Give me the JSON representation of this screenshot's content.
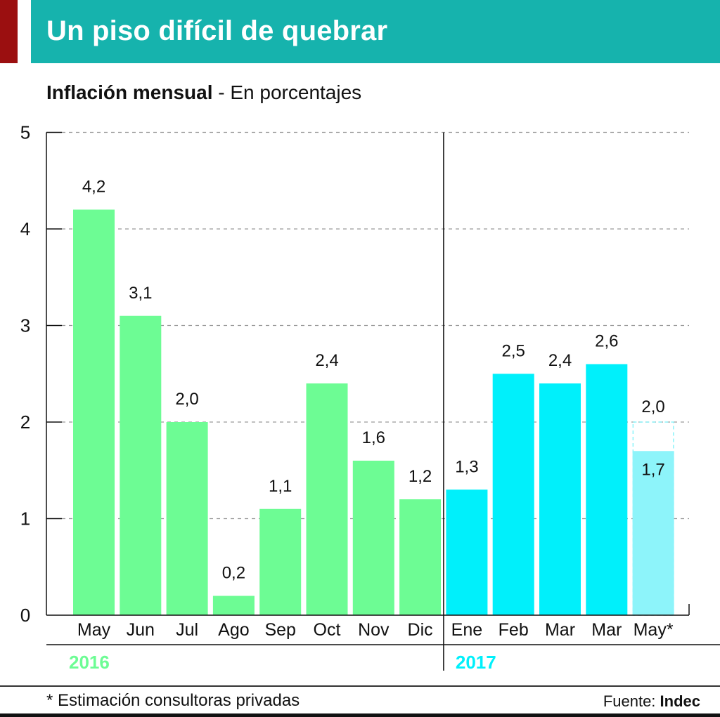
{
  "header": {
    "title": "Un piso difícil de quebrar",
    "accent_color": "#9b0f10",
    "band_color": "#16b3ad"
  },
  "subtitle": {
    "bold": "Inflación mensual",
    "rest": " - En porcentajes"
  },
  "chart_data": {
    "type": "bar",
    "title": "Inflación mensual",
    "ylabel": "En porcentajes",
    "ylim": [
      0,
      5
    ],
    "yticks": [
      "0",
      "1",
      "2",
      "3",
      "4",
      "5"
    ],
    "grid": true,
    "categories": [
      "May",
      "Jun",
      "Jul",
      "Ago",
      "Sep",
      "Oct",
      "Nov",
      "Dic",
      "Ene",
      "Feb",
      "Mar",
      "Mar",
      "May*"
    ],
    "values": [
      4.2,
      3.1,
      2.0,
      0.2,
      1.1,
      2.4,
      1.6,
      1.2,
      1.3,
      2.5,
      2.4,
      2.6,
      1.7
    ],
    "value_labels": [
      "4,2",
      "3,1",
      "2,0",
      "0,2",
      "1,1",
      "2,4",
      "1,6",
      "1,2",
      "1,3",
      "2,5",
      "2,4",
      "2,6",
      "1,7"
    ],
    "estimate_upper": {
      "index": 12,
      "value": 2.0,
      "label": "2,0"
    },
    "groups": [
      {
        "label": "2016",
        "start": 0,
        "end": 7,
        "color": "#6dfc94"
      },
      {
        "label": "2017",
        "start": 8,
        "end": 12,
        "color": "#00f0fb"
      }
    ],
    "estimate_color": "#8df4fa"
  },
  "footer": {
    "note": "* Estimación consultoras privadas",
    "source_label": "Fuente: ",
    "source_name": "Indec"
  }
}
